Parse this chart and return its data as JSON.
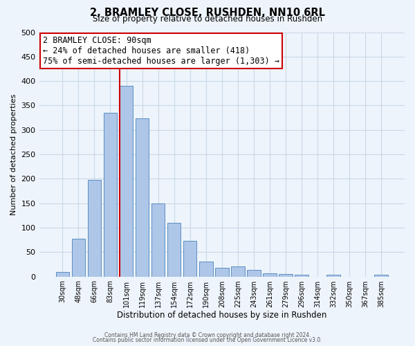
{
  "title": "2, BRAMLEY CLOSE, RUSHDEN, NN10 6RL",
  "subtitle": "Size of property relative to detached houses in Rushden",
  "xlabel": "Distribution of detached houses by size in Rushden",
  "ylabel": "Number of detached properties",
  "bin_labels": [
    "30sqm",
    "48sqm",
    "66sqm",
    "83sqm",
    "101sqm",
    "119sqm",
    "137sqm",
    "154sqm",
    "172sqm",
    "190sqm",
    "208sqm",
    "225sqm",
    "243sqm",
    "261sqm",
    "279sqm",
    "296sqm",
    "314sqm",
    "332sqm",
    "350sqm",
    "367sqm",
    "385sqm"
  ],
  "bin_values": [
    10,
    78,
    197,
    335,
    390,
    323,
    150,
    110,
    73,
    30,
    18,
    20,
    14,
    6,
    5,
    3,
    0,
    4,
    0,
    0,
    3
  ],
  "bar_color": "#aec6e8",
  "bar_edge_color": "#5a8fc2",
  "vline_color": "#cc0000",
  "vline_bin_index": 4,
  "annotation_box_text": "2 BRAMLEY CLOSE: 90sqm\n← 24% of detached houses are smaller (418)\n75% of semi-detached houses are larger (1,303) →",
  "annotation_fontsize": 8.5,
  "box_edge_color": "#cc0000",
  "ylim": [
    0,
    500
  ],
  "yticks": [
    0,
    50,
    100,
    150,
    200,
    250,
    300,
    350,
    400,
    450,
    500
  ],
  "grid_color": "#c8d8e8",
  "footer_text1": "Contains HM Land Registry data © Crown copyright and database right 2024.",
  "footer_text2": "Contains public sector information licensed under the Open Government Licence v3.0.",
  "bg_color": "#eef4fb",
  "plot_bg_color": "#eef4fb"
}
